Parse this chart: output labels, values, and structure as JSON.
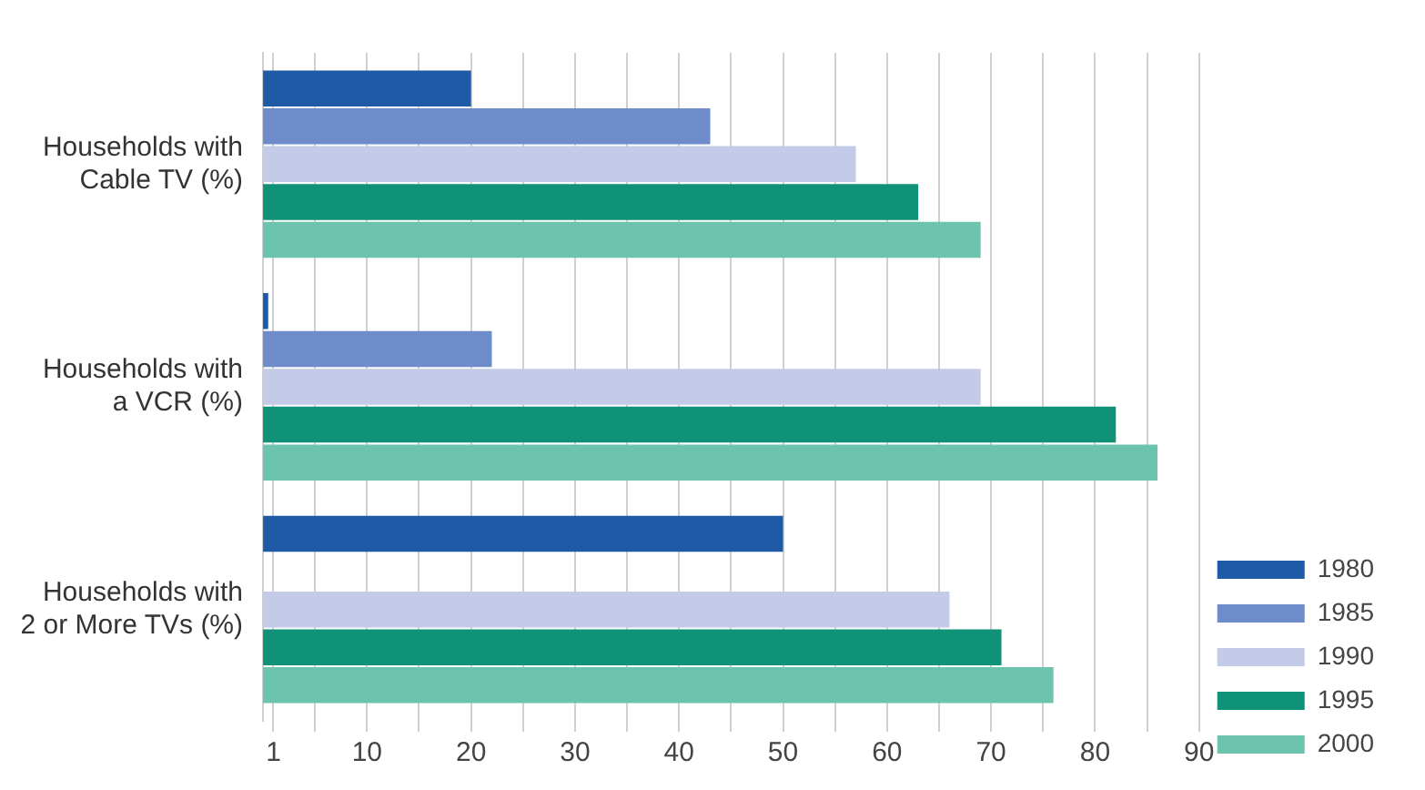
{
  "chart_data": {
    "type": "bar",
    "orientation": "horizontal",
    "categories": [
      "Households with\nCable TV (%)",
      "Households with\na VCR (%)",
      "Households with\n2 or More TVs (%)"
    ],
    "series": [
      {
        "name": "1980",
        "color": "#1f5aa6",
        "values": [
          20,
          0.5,
          50
        ]
      },
      {
        "name": "1985",
        "color": "#6d8cc9",
        "values": [
          43,
          22,
          null
        ]
      },
      {
        "name": "1990",
        "color": "#c3cbe8",
        "values": [
          57,
          69,
          66
        ]
      },
      {
        "name": "1995",
        "color": "#0f9278",
        "values": [
          63,
          82,
          71
        ]
      },
      {
        "name": "2000",
        "color": "#6cc4ae",
        "values": [
          69,
          86,
          76
        ]
      }
    ],
    "xlim": [
      0,
      90
    ],
    "xticks": [
      1,
      {
        "value": 5,
        "label": null
      },
      10,
      {
        "value": 15,
        "label": null
      },
      20,
      {
        "value": 25,
        "label": null
      },
      30,
      {
        "value": 35,
        "label": null
      },
      40,
      {
        "value": 45,
        "label": null
      },
      50,
      {
        "value": 55,
        "label": null
      },
      60,
      {
        "value": 65,
        "label": null
      },
      70,
      {
        "value": 75,
        "label": null
      },
      80,
      {
        "value": 85,
        "label": null
      },
      90
    ],
    "grid": "x",
    "legend": "bottom right"
  }
}
